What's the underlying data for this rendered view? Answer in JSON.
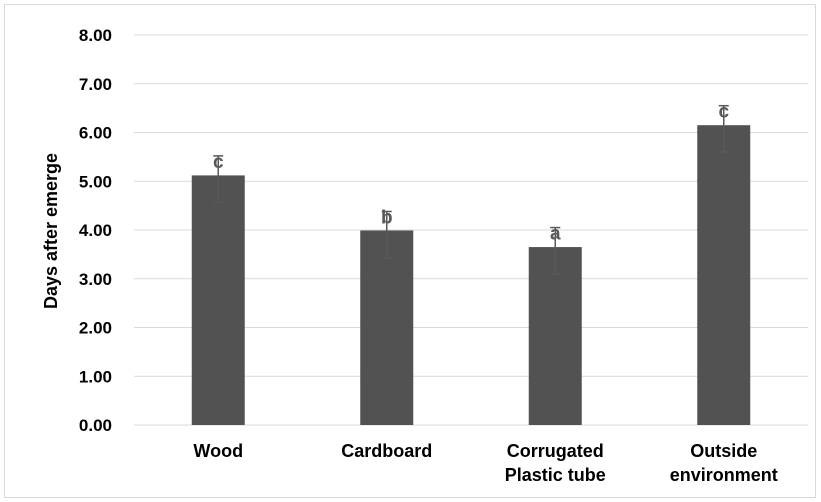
{
  "chart_data": {
    "type": "bar",
    "title": "",
    "xlabel": "",
    "ylabel": "Days after emerge",
    "ylim": [
      0,
      8
    ],
    "yticks": [
      "0.00",
      "1.00",
      "2.00",
      "3.00",
      "4.00",
      "5.00",
      "6.00",
      "7.00",
      "8.00"
    ],
    "grid": true,
    "categories": [
      [
        "Wood"
      ],
      [
        "Cardboard"
      ],
      [
        "Corrugated",
        "Plastic tube"
      ],
      [
        "Outside",
        "environment"
      ]
    ],
    "values": [
      5.12,
      3.99,
      3.65,
      6.15
    ],
    "error_low": [
      4.57,
      3.43,
      3.1,
      5.6
    ],
    "error_high": [
      5.52,
      4.38,
      4.05,
      6.55
    ],
    "significance_letters": [
      "c",
      "b",
      "a",
      "c"
    ],
    "colors": {
      "bar": "#525252",
      "grid": "#d9d9d9",
      "error": "#595959"
    }
  }
}
